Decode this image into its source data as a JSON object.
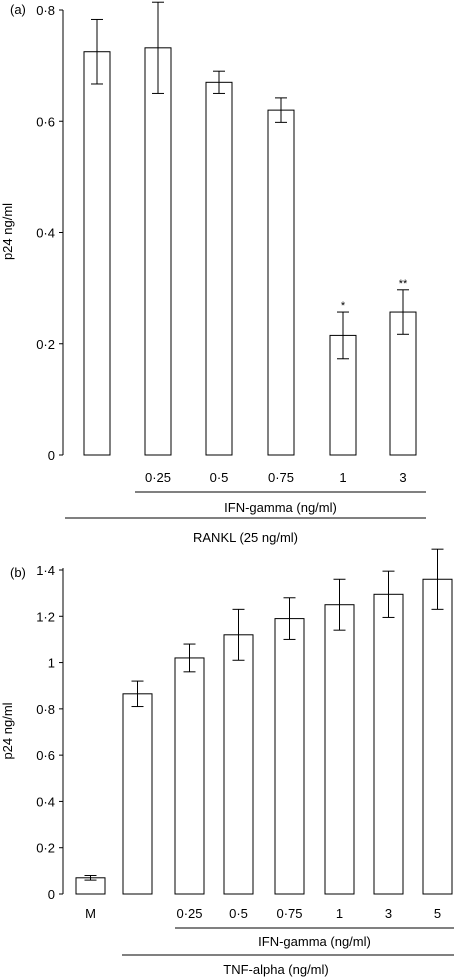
{
  "chart_data": [
    {
      "type": "bar",
      "panel_label": "(a)",
      "ylabel": "p24 ng/ml",
      "ylim": [
        0,
        0.8
      ],
      "yticks": [
        "0",
        "0·2",
        "0·4",
        "0·6",
        "0·8"
      ],
      "ytick_values": [
        0,
        0.2,
        0.4,
        0.6,
        0.8
      ],
      "categories": [
        "",
        "0·25",
        "0·5",
        "0·75",
        "1",
        "3"
      ],
      "values": [
        0.725,
        0.732,
        0.67,
        0.62,
        0.215,
        0.257
      ],
      "errors": [
        0.058,
        0.082,
        0.02,
        0.022,
        0.042,
        0.04
      ],
      "annotations": [
        "",
        "",
        "",
        "",
        "*",
        "**"
      ],
      "groupings": [
        {
          "label": "IFN-gamma (ng/ml)",
          "from": 1,
          "to": 5
        },
        {
          "label": "RANKL (25 ng/ml)",
          "from": 0,
          "to": 5
        }
      ]
    },
    {
      "type": "bar",
      "panel_label": "(b)",
      "ylabel": "p24 ng/ml",
      "ylim": [
        0,
        1.5
      ],
      "yticks": [
        "0",
        "0·2",
        "0·4",
        "0·6",
        "0·8",
        "1",
        "1·2",
        "1·4"
      ],
      "ytick_values": [
        0,
        0.2,
        0.4,
        0.6,
        0.8,
        1.0,
        1.2,
        1.4
      ],
      "categories": [
        "M",
        "",
        "0·25",
        "0·5",
        "0·75",
        "1",
        "3",
        "5"
      ],
      "values": [
        0.07,
        0.865,
        1.02,
        1.12,
        1.19,
        1.25,
        1.295,
        1.36
      ],
      "errors": [
        0.01,
        0.055,
        0.06,
        0.11,
        0.09,
        0.11,
        0.1,
        0.13
      ],
      "annotations": [
        "",
        "",
        "",
        "",
        "",
        "",
        "",
        ""
      ],
      "groupings": [
        {
          "label": "IFN-gamma (ng/ml)",
          "from": 2,
          "to": 7
        },
        {
          "label": "TNF-alpha (ng/ml)",
          "from": 1,
          "to": 7
        }
      ]
    }
  ]
}
